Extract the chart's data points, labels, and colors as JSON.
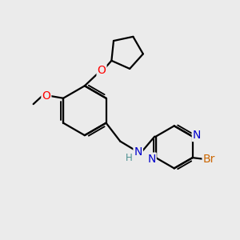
{
  "background_color": "#ebebeb",
  "bond_color": "#000000",
  "atom_colors": {
    "N": "#0000cc",
    "O": "#ff0000",
    "Br": "#cc6600",
    "C": "#000000",
    "H": "#4a9090"
  },
  "font_size": 8.5,
  "bond_width": 1.6,
  "figsize": [
    3.0,
    3.0
  ],
  "dpi": 100
}
